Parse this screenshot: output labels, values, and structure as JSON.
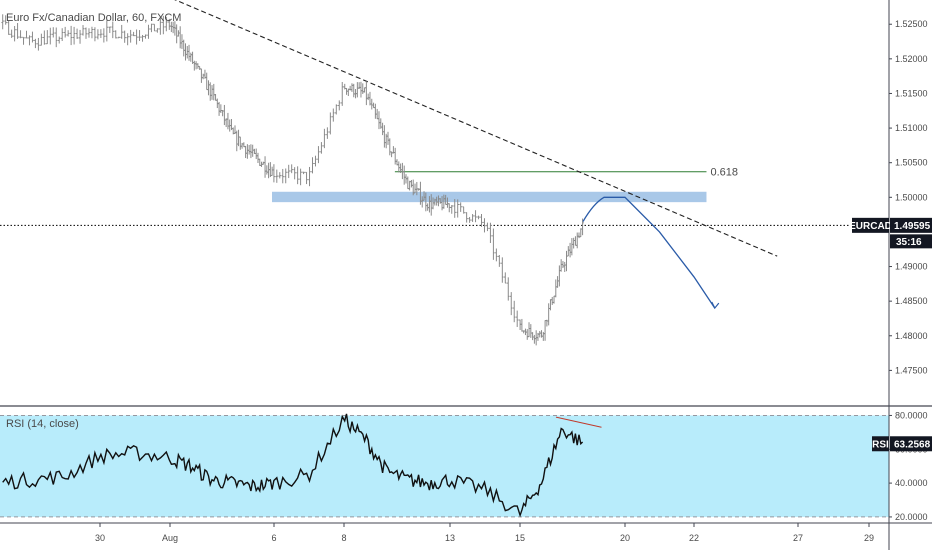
{
  "chart_data": [
    {
      "type": "candlestick",
      "symbol_label": "Euro Fx/Canadian Dollar, 60, FXCM",
      "symbol_tag": "EURCAD",
      "last_price": "1.49595",
      "countdown": "35:16",
      "fib_label": "0.618",
      "fib_level": 1.5037,
      "current_price": 1.49595,
      "support_zone": [
        1.4993,
        1.5008
      ],
      "ylim": [
        1.47,
        1.5285
      ],
      "y_ticks": [
        "1.52500",
        "1.52000",
        "1.51500",
        "1.51000",
        "1.50500",
        "1.50000",
        "1.49000",
        "1.48500",
        "1.48000",
        "1.47500"
      ],
      "y_tick_values": [
        1.525,
        1.52,
        1.515,
        1.51,
        1.505,
        1.5,
        1.49,
        1.485,
        1.48,
        1.475
      ],
      "x_ticks": [
        "30",
        "Aug",
        "6",
        "8",
        "13",
        "15",
        "20",
        "22",
        "27",
        "29"
      ],
      "x_tick_keys": [
        "Jul 30",
        "Aug 1",
        "Aug 6",
        "Aug 8",
        "Aug 13",
        "Aug 15",
        "Aug 20",
        "Aug 22",
        "Aug 27",
        "Aug 29"
      ],
      "price_path": [
        [
          "Jul 26",
          1.5295
        ],
        [
          "Jul 27",
          1.5255
        ],
        [
          "Jul 28",
          1.5225
        ],
        [
          "Jul 30",
          1.524
        ],
        [
          "Jul 31",
          1.5235
        ],
        [
          "Aug 1",
          1.525
        ],
        [
          "Aug 2",
          1.52
        ],
        [
          "Aug 3",
          1.515
        ],
        [
          "Aug 4",
          1.509
        ],
        [
          "Aug 5",
          1.506
        ],
        [
          "Aug 6",
          1.5035
        ],
        [
          "Aug 7",
          1.503
        ],
        [
          "Aug 8",
          1.516
        ],
        [
          "Aug 9",
          1.515
        ],
        [
          "Aug 10",
          1.508
        ],
        [
          "Aug 11",
          1.502
        ],
        [
          "Aug 12",
          1.499
        ],
        [
          "Aug 13",
          1.499
        ],
        [
          "Aug 14",
          1.496
        ],
        [
          "Aug 15",
          1.481
        ],
        [
          "Aug 16",
          1.48
        ],
        [
          "Aug 17",
          1.49
        ],
        [
          "Aug 18",
          1.496
        ]
      ],
      "projection": [
        [
          "Aug 18",
          1.4965
        ],
        [
          "Aug 19",
          1.5
        ],
        [
          "Aug 20",
          1.5
        ],
        [
          "Aug 21",
          1.495
        ],
        [
          "Aug 22",
          1.4885
        ],
        [
          "Aug 23",
          1.484
        ]
      ],
      "trendline": [
        [
          "Jul 31",
          1.531
        ],
        [
          "Aug 26",
          1.4915
        ]
      ]
    },
    {
      "type": "line",
      "indicator_label": "RSI (14, close)",
      "rsi_tag": "RSI",
      "last_value": "63.2568",
      "ylim": [
        17,
        85
      ],
      "band": [
        20,
        80
      ],
      "y_ticks": [
        "80.0000",
        "60.0000",
        "40.0000",
        "20.0000"
      ],
      "y_tick_values": [
        80,
        60,
        40,
        20
      ],
      "rsi_path": [
        [
          "Jul 26",
          38
        ],
        [
          "Jul 27",
          40
        ],
        [
          "Jul 28",
          42
        ],
        [
          "Jul 29",
          44
        ],
        [
          "Jul 30",
          56
        ],
        [
          "Jul 31",
          58
        ],
        [
          "Aug 1",
          55
        ],
        [
          "Aug 2",
          50
        ],
        [
          "Aug 3",
          42
        ],
        [
          "Aug 4",
          40
        ],
        [
          "Aug 5",
          38
        ],
        [
          "Aug 6",
          40
        ],
        [
          "Aug 7",
          45
        ],
        [
          "Aug 8",
          78
        ],
        [
          "Aug 9",
          66
        ],
        [
          "Aug 10",
          47
        ],
        [
          "Aug 11",
          42
        ],
        [
          "Aug 12",
          40
        ],
        [
          "Aug 13",
          42
        ],
        [
          "Aug 14",
          36
        ],
        [
          "Aug 15",
          22
        ],
        [
          "Aug 16",
          40
        ],
        [
          "Aug 17",
          72
        ],
        [
          "Aug 18",
          63.26
        ]
      ],
      "divergence": [
        [
          "Aug 17",
          79
        ],
        [
          "Aug 18.5",
          73
        ]
      ]
    }
  ]
}
